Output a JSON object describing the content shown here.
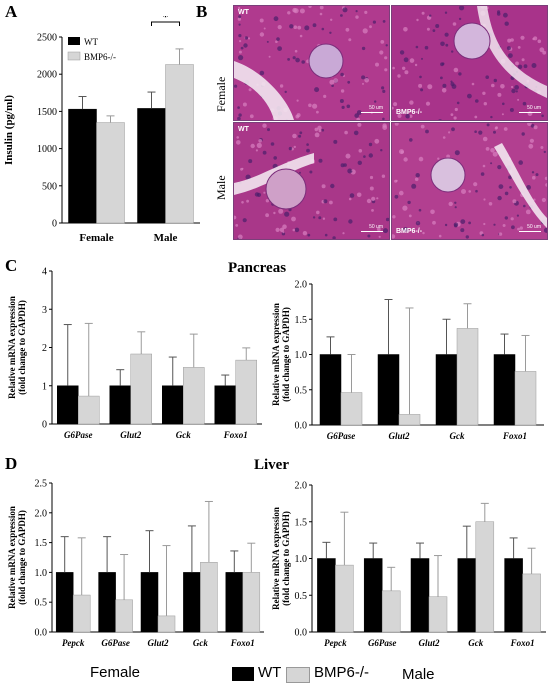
{
  "panels": {
    "a": "A",
    "b": "B",
    "c": "C",
    "d": "D"
  },
  "section_titles": {
    "pancreas": "Pancreas",
    "liver": "Liver"
  },
  "micrographs": {
    "row_labels": {
      "female": "Female",
      "male": "Male"
    },
    "tiles": [
      {
        "label": "WT",
        "scale": "50 um",
        "label_pos": "top"
      },
      {
        "label": "BMP6-/-",
        "scale": "50 um",
        "label_pos": "bottom"
      },
      {
        "label": "WT",
        "scale": "50 um",
        "label_pos": "top"
      },
      {
        "label": "BMP6-/-",
        "scale": "50 um",
        "label_pos": "bottom"
      }
    ]
  },
  "legend_bottom": {
    "female": "Female",
    "wt": "WT",
    "ko": "BMP6-/-",
    "male": "Male"
  },
  "colors": {
    "wt": "#000000",
    "ko": "#d6d6d6"
  },
  "chart_data": [
    {
      "id": "A",
      "type": "bar",
      "categories": [
        "Female",
        "Male"
      ],
      "ylabel": "Insulin (pg/ml)",
      "ylim": [
        0,
        2500
      ],
      "yticks": [
        0,
        500,
        1000,
        1500,
        2000,
        2500
      ],
      "legend": [
        "WT",
        "BMP6-/-"
      ],
      "legend_position": "top-left",
      "annotation": "*",
      "series": [
        {
          "name": "WT",
          "values": [
            1530,
            1540
          ],
          "errors": [
            170,
            220
          ]
        },
        {
          "name": "BMP6-/-",
          "values": [
            1350,
            2130
          ],
          "errors": [
            90,
            210
          ]
        }
      ]
    },
    {
      "id": "C-female",
      "type": "bar",
      "categories": [
        "G6Pase",
        "Glut2",
        "Gck",
        "Foxo1"
      ],
      "ylabel": "Relative mRNA expression\n(fold change to GAPDH)",
      "ylim": [
        0,
        4
      ],
      "yticks": [
        0,
        1,
        2,
        3,
        4
      ],
      "series": [
        {
          "name": "WT",
          "values": [
            1.0,
            1.0,
            1.0,
            1.0
          ],
          "errors": [
            1.6,
            0.42,
            0.75,
            0.28
          ]
        },
        {
          "name": "BMP6-/-",
          "values": [
            0.73,
            1.83,
            1.48,
            1.67
          ],
          "errors": [
            1.9,
            0.58,
            0.87,
            0.32
          ]
        }
      ]
    },
    {
      "id": "C-male",
      "type": "bar",
      "categories": [
        "G6Pase",
        "Glut2",
        "Gck",
        "Foxo1"
      ],
      "ylabel": "Relative mRNA expression\n(fold change to GAPDH)",
      "ylim": [
        0,
        2
      ],
      "yticks": [
        0.0,
        0.5,
        1.0,
        1.5,
        2.0
      ],
      "series": [
        {
          "name": "WT",
          "values": [
            1.0,
            1.0,
            1.0,
            1.0
          ],
          "errors": [
            0.25,
            0.78,
            0.5,
            0.29
          ]
        },
        {
          "name": "BMP6-/-",
          "values": [
            0.46,
            0.15,
            1.37,
            0.76
          ],
          "errors": [
            0.54,
            1.51,
            0.35,
            0.51
          ]
        }
      ]
    },
    {
      "id": "D-female",
      "type": "bar",
      "categories": [
        "Pepck",
        "G6Pase",
        "Glut2",
        "Gck",
        "Foxo1"
      ],
      "ylabel": "Relative mRNA expression\n(fold change to GAPDH)",
      "ylim": [
        0,
        2.5
      ],
      "yticks": [
        0.0,
        0.5,
        1.0,
        1.5,
        2.0,
        2.5
      ],
      "series": [
        {
          "name": "WT",
          "values": [
            1.0,
            1.0,
            1.0,
            1.0,
            1.0
          ],
          "errors": [
            0.6,
            0.6,
            0.7,
            0.78,
            0.36
          ]
        },
        {
          "name": "BMP6-/-",
          "values": [
            0.62,
            0.54,
            0.27,
            1.17,
            1.0
          ],
          "errors": [
            0.96,
            0.76,
            1.18,
            1.02,
            0.49
          ]
        }
      ]
    },
    {
      "id": "D-male",
      "type": "bar",
      "categories": [
        "Pepck",
        "G6Pase",
        "Glut2",
        "Gck",
        "Foxo1"
      ],
      "ylabel": "Relative mRNA expression\n(fold change to GAPDH)",
      "ylim": [
        0,
        2
      ],
      "yticks": [
        0.0,
        0.5,
        1.0,
        1.5,
        2.0
      ],
      "series": [
        {
          "name": "WT",
          "values": [
            1.0,
            1.0,
            1.0,
            1.0,
            1.0
          ],
          "errors": [
            0.22,
            0.21,
            0.21,
            0.44,
            0.28
          ]
        },
        {
          "name": "BMP6-/-",
          "values": [
            0.91,
            0.56,
            0.48,
            1.5,
            0.79
          ],
          "errors": [
            0.72,
            0.32,
            0.56,
            0.25,
            0.35
          ]
        }
      ]
    }
  ]
}
